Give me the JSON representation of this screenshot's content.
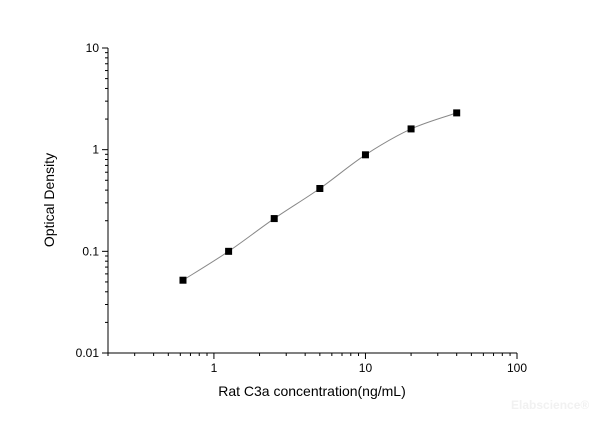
{
  "chart_data": {
    "type": "scatter",
    "xlabel": "Rat C3a concentration(ng/mL)",
    "ylabel": "Optical Density",
    "xscale": "log",
    "yscale": "log",
    "xlim": [
      0.2,
      100
    ],
    "ylim": [
      0.01,
      10
    ],
    "xticks": [
      "1",
      "10",
      "100"
    ],
    "yticks": [
      "0.01",
      "0.1",
      "1",
      "10"
    ],
    "grid": false,
    "series": [
      {
        "x": [
          0.625,
          1.25,
          2.5,
          5,
          10,
          20,
          40
        ],
        "y": [
          0.052,
          0.1,
          0.21,
          0.415,
          0.89,
          1.6,
          2.3
        ],
        "marker": "square",
        "fit_line": true
      }
    ],
    "colors": {
      "marker": "#000000",
      "fit": "#888888"
    }
  },
  "watermark": "Elabscience®"
}
